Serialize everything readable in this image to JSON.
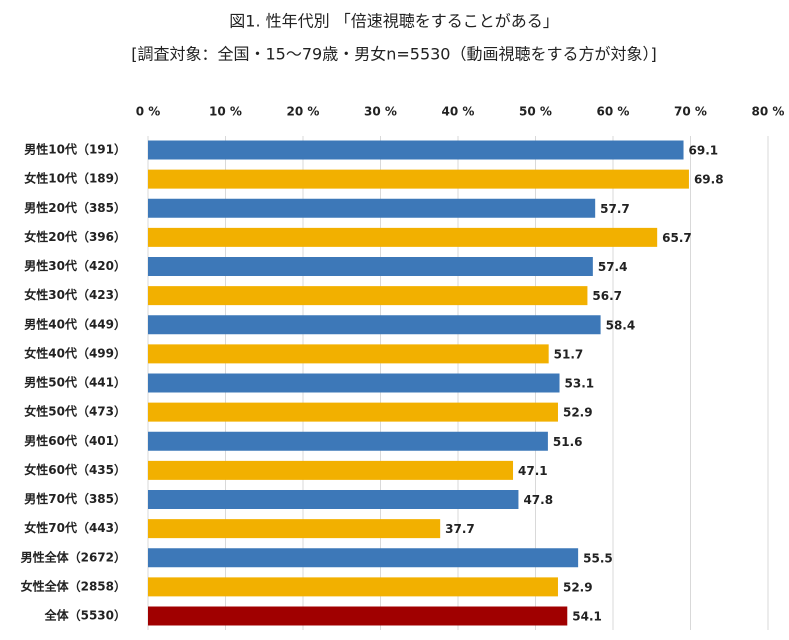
{
  "chart_data": {
    "type": "bar",
    "orientation": "horizontal",
    "title": "図1. 性年代別 「倍速視聴をすることがある」",
    "subtitle": "[調査対象：全国・15～79歳・男女n=5530（動画視聴をする方が対象）]",
    "categories": [
      "男性10代（191）",
      "女性10代（189）",
      "男性20代（385）",
      "女性20代（396）",
      "男性30代（420）",
      "女性30代（423）",
      "男性40代（449）",
      "女性40代（499）",
      "男性50代（441）",
      "女性50代（473）",
      "男性60代（401）",
      "女性60代（435）",
      "男性70代（385）",
      "女性70代（443）",
      "男性全体（2672）",
      "女性全体（2858）",
      "全体（5530）"
    ],
    "values": [
      69.1,
      69.8,
      57.7,
      65.7,
      57.4,
      56.7,
      58.4,
      51.7,
      53.1,
      52.9,
      51.6,
      47.1,
      47.8,
      37.7,
      55.5,
      52.9,
      54.1
    ],
    "colors": [
      "#3d78b8",
      "#f2b000",
      "#3d78b8",
      "#f2b000",
      "#3d78b8",
      "#f2b000",
      "#3d78b8",
      "#f2b000",
      "#3d78b8",
      "#f2b000",
      "#3d78b8",
      "#f2b000",
      "#3d78b8",
      "#f2b000",
      "#3d78b8",
      "#f2b000",
      "#a00000"
    ],
    "xlim": [
      0,
      80
    ],
    "xticks": [
      {
        "value": 0,
        "label": "0 %"
      },
      {
        "value": 10,
        "label": "10 %"
      },
      {
        "value": 20,
        "label": "20 %"
      },
      {
        "value": 30,
        "label": "30 %"
      },
      {
        "value": 40,
        "label": "40 %"
      },
      {
        "value": 50,
        "label": "50 %"
      },
      {
        "value": 60,
        "label": "60 %"
      },
      {
        "value": 70,
        "label": "70 %"
      },
      {
        "value": 80,
        "label": "80 %"
      }
    ],
    "grid": true
  }
}
